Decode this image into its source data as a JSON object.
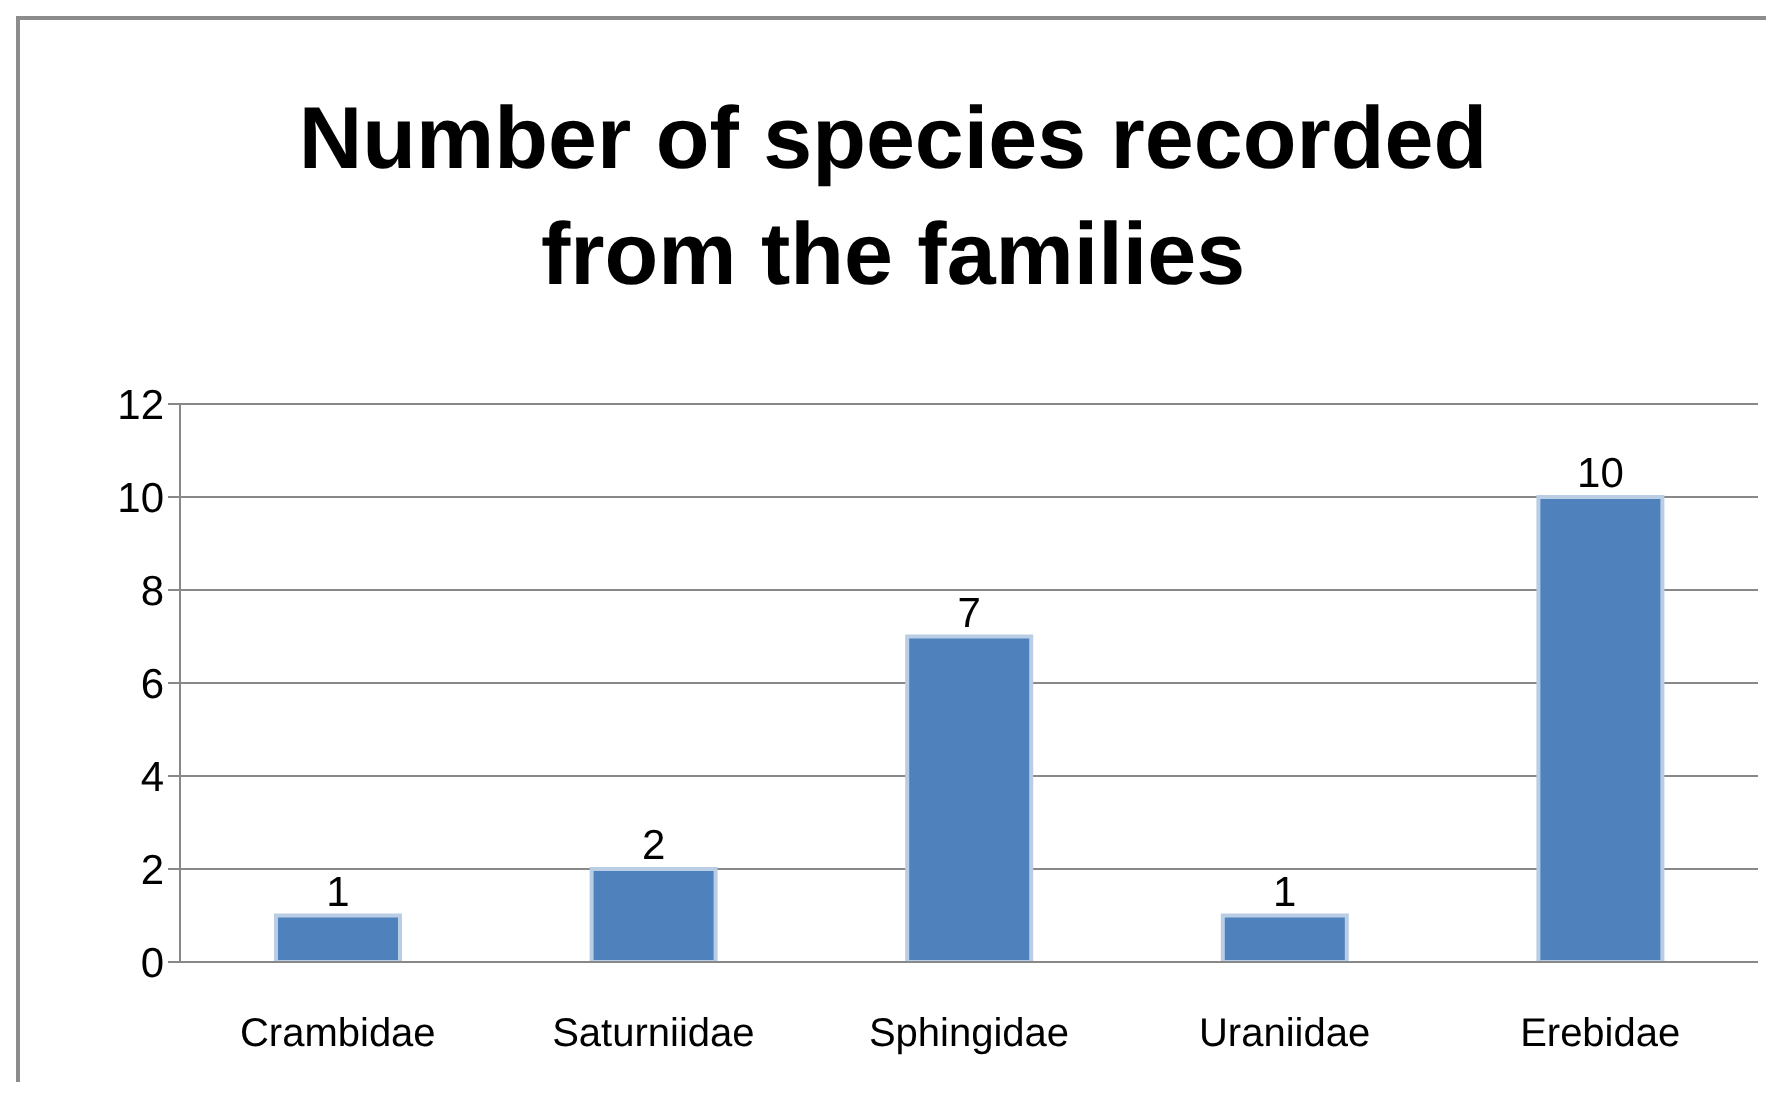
{
  "chart_data": {
    "type": "bar",
    "title": "Number of species recorded from the families",
    "categories": [
      "Crambidae",
      "Saturniidae",
      "Sphingidae",
      "Uraniidae",
      "Erebidae"
    ],
    "values": [
      1,
      2,
      7,
      1,
      10
    ],
    "color": "#4f81bd",
    "ylim": [
      0,
      12
    ],
    "yticks": [
      0,
      2,
      4,
      6,
      8,
      10,
      12
    ],
    "grid": "y",
    "data_labels": true
  }
}
